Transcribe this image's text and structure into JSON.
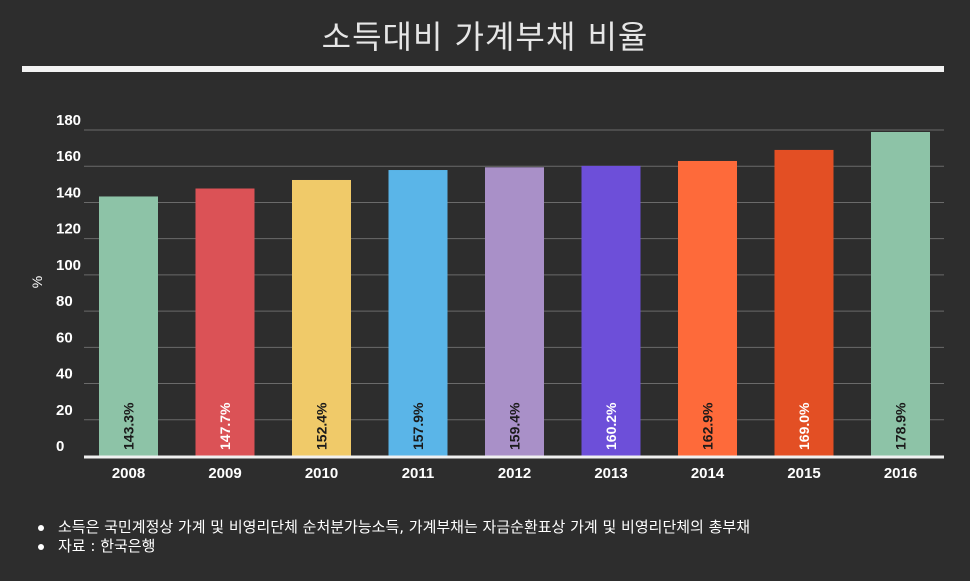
{
  "title": "소득대비 가계부채 비율",
  "chart_data": {
    "type": "bar",
    "title": "소득대비 가계부채 비율",
    "xlabel": "",
    "ylabel": "%",
    "categories": [
      "2008",
      "2009",
      "2010",
      "2011",
      "2012",
      "2013",
      "2014",
      "2015",
      "2016"
    ],
    "values": [
      143.3,
      147.7,
      152.4,
      157.9,
      159.4,
      160.2,
      162.9,
      169.0,
      178.9
    ],
    "data_labels": [
      "143.3%",
      "147.7%",
      "152.4%",
      "157.9%",
      "159.4%",
      "160.2%",
      "162.9%",
      "169.0%",
      "178.9%"
    ],
    "ylim": [
      0,
      180
    ],
    "yticks": [
      "0",
      "20",
      "40",
      "60",
      "80",
      "100",
      "120",
      "140",
      "160",
      "180"
    ],
    "grid": true,
    "bar_colors": [
      "#8dc3a7",
      "#db5256",
      "#f0ca69",
      "#5ab5e8",
      "#a990c8",
      "#6d4fd9",
      "#fe6a3a",
      "#e34f24",
      "#8dc3a7"
    ],
    "label_colors": [
      "#1a1a1a",
      "#ffffff",
      "#1a1a1a",
      "#1a1a1a",
      "#1a1a1a",
      "#ffffff",
      "#1a1a1a",
      "#ffffff",
      "#1a1a1a"
    ]
  },
  "notes": [
    "소득은 국민계정상 가계 및 비영리단체 순처분가능소득, 가계부채는 자금순환표상 가계 및 비영리단체의 총부채",
    "자료 : 한국은행"
  ]
}
